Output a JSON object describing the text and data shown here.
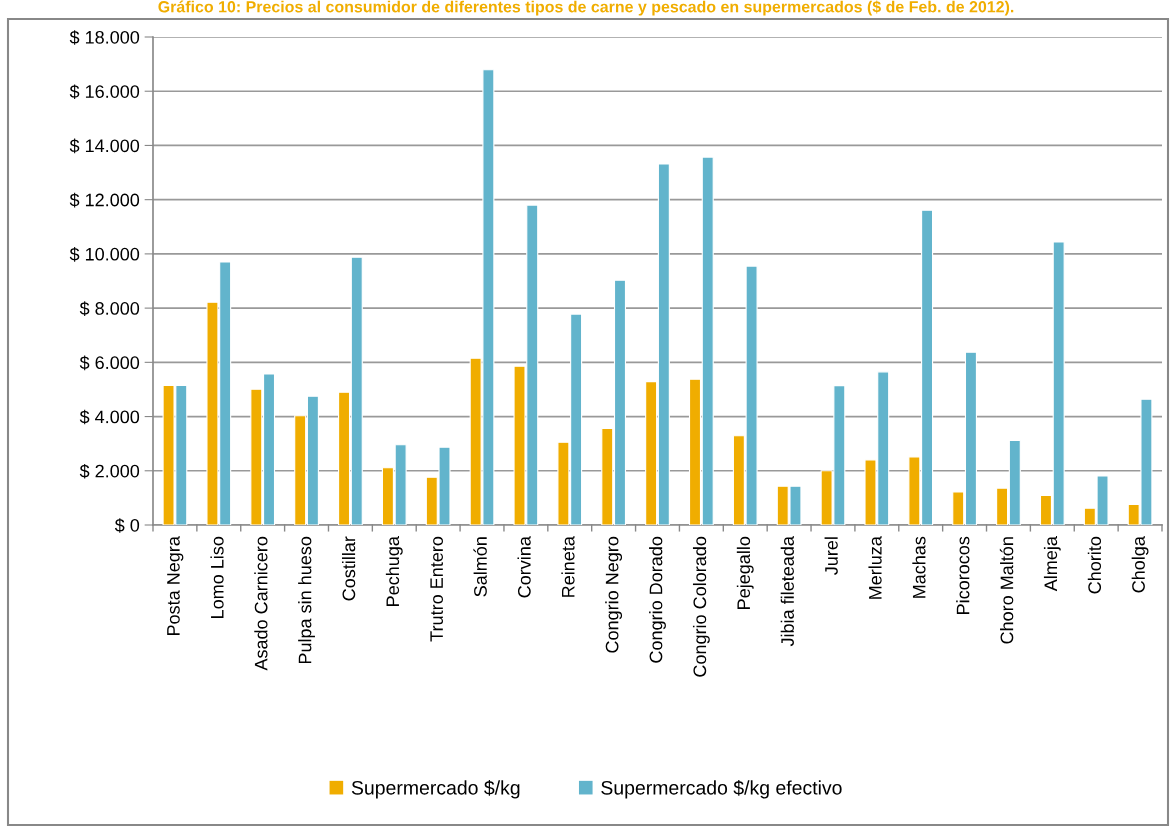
{
  "chart_data": {
    "type": "bar",
    "title": "Gráfico 10: Precios al consumidor de diferentes tipos de carne y pescado en supermercados ($ de Feb. de 2012).",
    "categories": [
      "Posta Negra",
      "Lomo Liso",
      "Asado Carnicero",
      "Pulpa sin hueso",
      "Costillar",
      "Pechuga",
      "Trutro Entero",
      "Salmón",
      "Corvina",
      "Reineta",
      "Congrio Negro",
      "Congrio Dorado",
      "Congrio Colorado",
      "Pejegallo",
      "Jibia fileteada",
      "Jurel",
      "Merluza",
      "Machas",
      "Picorocos",
      "Choro Maltón",
      "Almeja",
      "Chorito",
      "Cholga"
    ],
    "series": [
      {
        "name": "Supermercado $/kg",
        "color": "#f0ad00",
        "values": [
          5150,
          8220,
          5010,
          4030,
          4900,
          2110,
          1760,
          6150,
          5860,
          3050,
          3560,
          5290,
          5380,
          3290,
          1430,
          2000,
          2400,
          2510,
          1220,
          1360,
          1090,
          620,
          760
        ]
      },
      {
        "name": "Supermercado $/kg efectivo",
        "color": "#62b4cc",
        "values": [
          5150,
          9700,
          5570,
          4750,
          9880,
          2960,
          2870,
          16790,
          11800,
          7780,
          9030,
          13320,
          13570,
          9550,
          1430,
          5140,
          5650,
          11610,
          6370,
          3120,
          10440,
          1810,
          4640
        ]
      }
    ],
    "ylim": [
      0,
      18000
    ],
    "yticks": [
      {
        "value": 0,
        "label": "$ 0"
      },
      {
        "value": 2000,
        "label": "$ 2.000"
      },
      {
        "value": 4000,
        "label": "$ 4.000"
      },
      {
        "value": 6000,
        "label": "$ 6.000"
      },
      {
        "value": 8000,
        "label": "$ 8.000"
      },
      {
        "value": 10000,
        "label": "$ 10.000"
      },
      {
        "value": 12000,
        "label": "$ 12.000"
      },
      {
        "value": 14000,
        "label": "$ 14.000"
      },
      {
        "value": 16000,
        "label": "$ 16.000"
      },
      {
        "value": 18000,
        "label": "$ 18.000"
      }
    ],
    "grid": "y",
    "legend": "bottom"
  }
}
